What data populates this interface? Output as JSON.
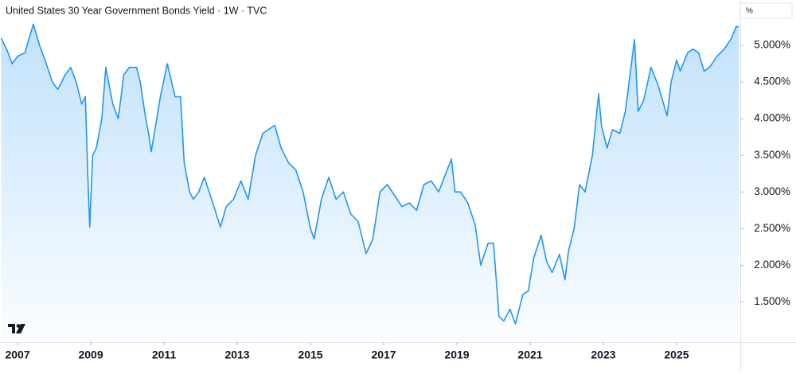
{
  "chart_data": {
    "type": "line",
    "title": "United States 30 Year Government Bonds Yield · 1W · TVC",
    "y_axis_label": "%",
    "color": "#2196f3",
    "xlim": [
      2006.52,
      2026.74
    ],
    "ylim": [
      0.95,
      5.62
    ],
    "xticks": [
      2007,
      2009,
      2011,
      2013,
      2015,
      2017,
      2019,
      2021,
      2023,
      2025
    ],
    "yticks": [
      {
        "value": 1.5,
        "label": "1.500%"
      },
      {
        "value": 2.0,
        "label": "2.000%"
      },
      {
        "value": 2.5,
        "label": "2.500%"
      },
      {
        "value": 3.0,
        "label": "3.000%"
      },
      {
        "value": 3.5,
        "label": "3.500%"
      },
      {
        "value": 4.0,
        "label": "4.000%"
      },
      {
        "value": 4.5,
        "label": "4.500%"
      },
      {
        "value": 5.0,
        "label": "5.000%"
      }
    ],
    "x": [
      2006.55,
      2006.7,
      2006.85,
      2007.0,
      2007.2,
      2007.43,
      2007.6,
      2007.75,
      2007.95,
      2008.1,
      2008.3,
      2008.45,
      2008.6,
      2008.75,
      2008.85,
      2008.92,
      2008.97,
      2009.05,
      2009.15,
      2009.3,
      2009.41,
      2009.6,
      2009.75,
      2009.9,
      2010.05,
      2010.25,
      2010.35,
      2010.5,
      2010.58,
      2010.65,
      2010.9,
      2011.09,
      2011.3,
      2011.45,
      2011.55,
      2011.7,
      2011.8,
      2011.95,
      2012.1,
      2012.3,
      2012.54,
      2012.7,
      2012.9,
      2013.1,
      2013.3,
      2013.5,
      2013.7,
      2014.02,
      2014.2,
      2014.4,
      2014.6,
      2014.8,
      2015.0,
      2015.1,
      2015.3,
      2015.5,
      2015.7,
      2015.9,
      2016.1,
      2016.3,
      2016.52,
      2016.7,
      2016.9,
      2017.1,
      2017.3,
      2017.5,
      2017.7,
      2017.9,
      2018.1,
      2018.3,
      2018.5,
      2018.85,
      2018.95,
      2019.1,
      2019.3,
      2019.5,
      2019.65,
      2019.85,
      2020.0,
      2020.15,
      2020.28,
      2020.45,
      2020.6,
      2020.8,
      2020.95,
      2021.1,
      2021.3,
      2021.45,
      2021.6,
      2021.8,
      2021.95,
      2022.05,
      2022.2,
      2022.35,
      2022.5,
      2022.7,
      2022.87,
      2022.95,
      2023.1,
      2023.25,
      2023.45,
      2023.6,
      2023.85,
      2023.95,
      2024.1,
      2024.3,
      2024.5,
      2024.74,
      2024.85,
      2025.0,
      2025.1,
      2025.3,
      2025.45,
      2025.6,
      2025.75,
      2025.9,
      2026.1,
      2026.3,
      2026.5,
      2026.63,
      2026.7
    ],
    "values": [
      5.1,
      4.95,
      4.75,
      4.85,
      4.9,
      5.29,
      5.0,
      4.8,
      4.5,
      4.4,
      4.6,
      4.7,
      4.5,
      4.2,
      4.3,
      3.2,
      2.52,
      3.5,
      3.6,
      4.0,
      4.7,
      4.2,
      4.0,
      4.6,
      4.7,
      4.7,
      4.5,
      4.0,
      3.8,
      3.55,
      4.3,
      4.75,
      4.3,
      4.3,
      3.4,
      3.0,
      2.9,
      3.0,
      3.2,
      2.9,
      2.52,
      2.8,
      2.9,
      3.15,
      2.9,
      3.5,
      3.8,
      3.91,
      3.6,
      3.4,
      3.3,
      3.0,
      2.5,
      2.36,
      2.9,
      3.2,
      2.9,
      3.0,
      2.7,
      2.6,
      2.16,
      2.35,
      3.0,
      3.1,
      2.95,
      2.8,
      2.85,
      2.75,
      3.1,
      3.15,
      3.0,
      3.45,
      3.0,
      3.0,
      2.85,
      2.55,
      2.0,
      2.3,
      2.3,
      1.3,
      1.24,
      1.4,
      1.2,
      1.6,
      1.65,
      2.1,
      2.41,
      2.05,
      1.9,
      2.15,
      1.8,
      2.2,
      2.5,
      3.1,
      3.0,
      3.5,
      4.34,
      3.9,
      3.6,
      3.85,
      3.8,
      4.1,
      5.08,
      4.1,
      4.25,
      4.7,
      4.45,
      4.04,
      4.5,
      4.8,
      4.65,
      4.9,
      4.95,
      4.9,
      4.65,
      4.7,
      4.85,
      4.95,
      5.1,
      5.26,
      5.25
    ]
  }
}
